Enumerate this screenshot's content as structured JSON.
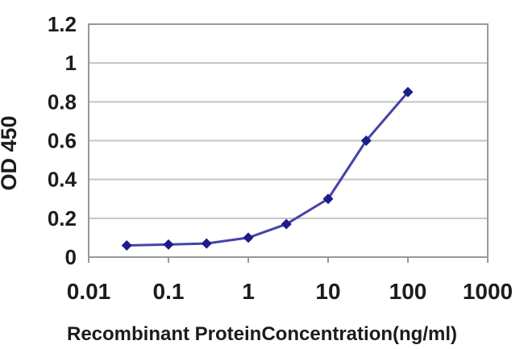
{
  "chart_data": {
    "type": "line",
    "title": "",
    "xlabel": "Recombinant ProteinConcentration(ng/ml)",
    "ylabel": "OD 450",
    "x_scale": "log",
    "x": [
      0.03,
      0.1,
      0.3,
      1,
      3,
      10,
      30,
      100
    ],
    "y": [
      0.06,
      0.065,
      0.07,
      0.1,
      0.17,
      0.3,
      0.6,
      0.85
    ],
    "x_tick_labels": [
      "0.01",
      "0.1",
      "1",
      "10",
      "100",
      "1000"
    ],
    "x_tick_values": [
      0.01,
      0.1,
      1,
      10,
      100,
      1000
    ],
    "y_tick_labels": [
      "0",
      "0.2",
      "0.4",
      "0.6",
      "0.8",
      "1",
      "1.2"
    ],
    "y_tick_values": [
      0,
      0.2,
      0.4,
      0.6,
      0.8,
      1,
      1.2
    ],
    "xlim": [
      0.01,
      1000
    ],
    "ylim": [
      0,
      1.2
    ],
    "grid": "horizontal",
    "legend": "none",
    "marker": "diamond",
    "colors": {
      "line": "#4444a6",
      "marker": "#1c1c8a",
      "gridline": "#c4c4c4",
      "plot_border": "#999999",
      "tick": "#999999",
      "text": "#1c1c1c",
      "background": "#ffffff"
    }
  }
}
